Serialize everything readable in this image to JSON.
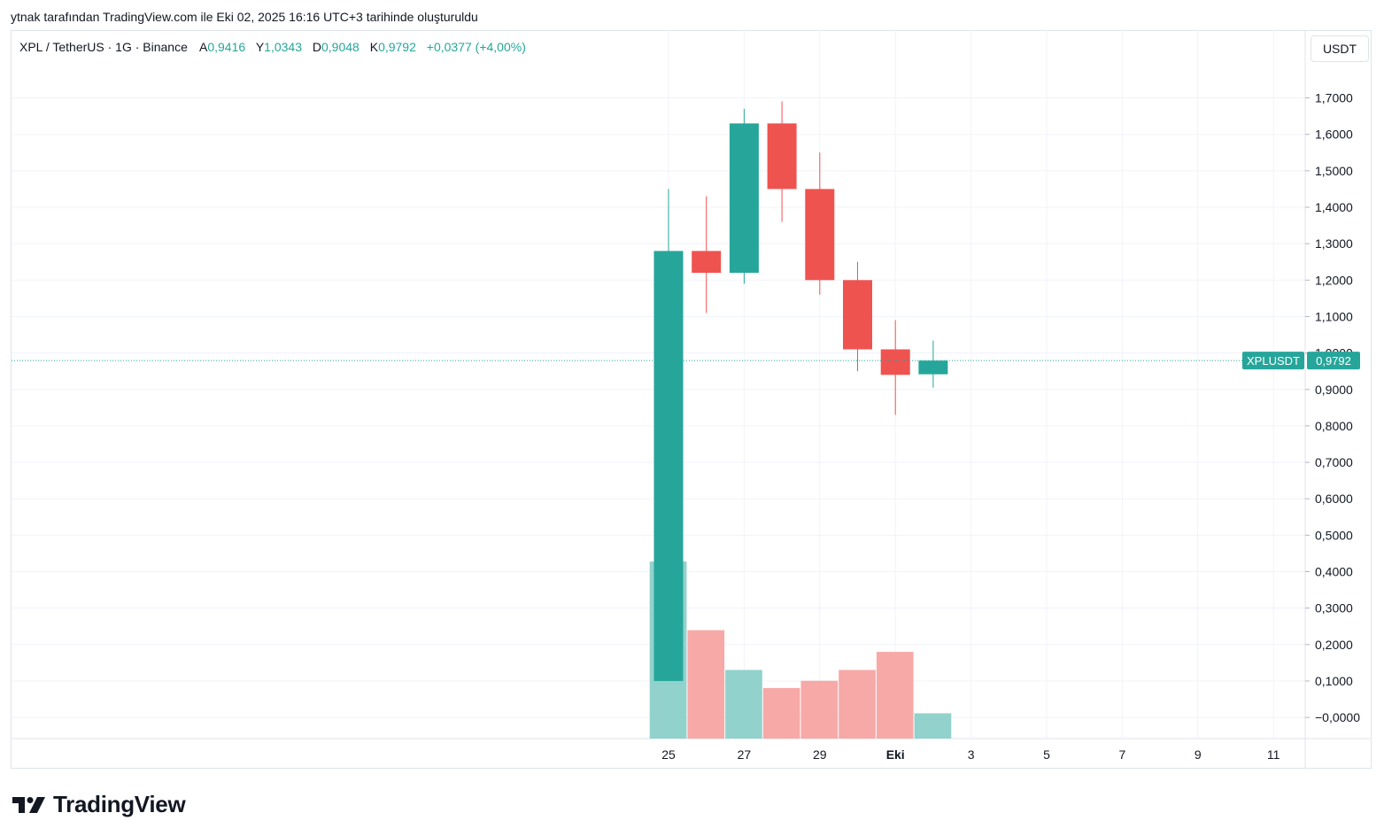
{
  "caption": "ytnak tarafından TradingView.com ile Eki 02, 2025 16:16 UTC+3 tarihinde oluşturuldu",
  "legend": {
    "symbol": "XPL / TetherUS · 1G · Binance",
    "open_label": "A",
    "open": "0,9416",
    "high_label": "Y",
    "high": "1,0343",
    "low_label": "D",
    "low": "0,9048",
    "close_label": "K",
    "close": "0,9792",
    "change": "+0,0377 (+4,00%)"
  },
  "currency_button": "USDT",
  "price_tag": {
    "ticker": "XPLUSDT",
    "price": "0,9792"
  },
  "brand": "TradingView",
  "colors": {
    "up": "#26a69a",
    "down": "#ef5350",
    "vol_up": "#92d2cc",
    "vol_down": "#f7a9a7",
    "grid": "#f0f3fa"
  },
  "chart_data": {
    "type": "candlestick",
    "y_ticks": [
      "1,7000",
      "1,6000",
      "1,5000",
      "1,4000",
      "1,3000",
      "1,2000",
      "1,1000",
      "1,0000",
      "0,9000",
      "0,8000",
      "0,7000",
      "0,6000",
      "0,5000",
      "0,4000",
      "0,3000",
      "0,2000",
      "0,1000",
      "−0,0000"
    ],
    "ylim": [
      -0.05,
      1.85
    ],
    "x_ticks": [
      {
        "label": "25",
        "day": 25
      },
      {
        "label": "27",
        "day": 27
      },
      {
        "label": "29",
        "day": 29
      },
      {
        "label": "Eki",
        "day": 31,
        "bold": true
      },
      {
        "label": "3",
        "day": 33
      },
      {
        "label": "5",
        "day": 35
      },
      {
        "label": "7",
        "day": 37
      },
      {
        "label": "9",
        "day": 39
      },
      {
        "label": "11",
        "day": 41
      }
    ],
    "candles": [
      {
        "day": 25,
        "open": 0.1,
        "high": 1.45,
        "low": 0.1,
        "close": 1.28
      },
      {
        "day": 26,
        "open": 1.28,
        "high": 1.43,
        "low": 1.11,
        "close": 1.22
      },
      {
        "day": 27,
        "open": 1.22,
        "high": 1.67,
        "low": 1.19,
        "close": 1.63
      },
      {
        "day": 28,
        "open": 1.63,
        "high": 1.69,
        "low": 1.36,
        "close": 1.45
      },
      {
        "day": 29,
        "open": 1.45,
        "high": 1.55,
        "low": 1.16,
        "close": 1.2
      },
      {
        "day": 30,
        "open": 1.2,
        "high": 1.25,
        "low": 0.95,
        "close": 1.01
      },
      {
        "day": 31,
        "open": 1.01,
        "high": 1.09,
        "low": 0.83,
        "close": 0.94
      },
      {
        "day": 32,
        "open": 0.9416,
        "high": 1.0343,
        "low": 0.9048,
        "close": 0.9792
      }
    ],
    "volume_relative": [
      0.49,
      0.3,
      0.19,
      0.14,
      0.16,
      0.19,
      0.24,
      0.07
    ],
    "last_price": 0.9792
  }
}
